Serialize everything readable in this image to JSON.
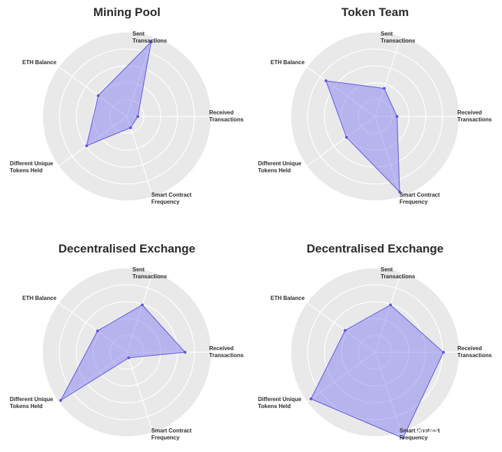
{
  "axes": [
    "Sent Transactions",
    "Received Transactions",
    "Smart Contract Frequency",
    "Different Unique Tokens Held",
    "ETH Balance"
  ],
  "axis_label_lines": [
    [
      "Sent",
      "Transactions"
    ],
    [
      "Received",
      "Transactions"
    ],
    [
      "Smart Contract",
      "Frequency"
    ],
    [
      "Different Unique",
      "Tokens Held"
    ],
    [
      "ETH Balance"
    ]
  ],
  "watermark": "知乎 @陈东泽",
  "colors": {
    "fill": "#7b72f2",
    "stroke": "#5b55e0",
    "background_circle": "#e9e9e9",
    "grid": "#ffffff"
  },
  "chart_data": [
    {
      "type": "radar",
      "title": "Mining Pool",
      "rmax": 1.0,
      "grid_rings": 5,
      "values": [
        0.93,
        0.13,
        0.14,
        0.59,
        0.42
      ]
    },
    {
      "type": "radar",
      "title": "Token Team",
      "rmax": 1.0,
      "grid_rings": 5,
      "values": [
        0.35,
        0.26,
        0.94,
        0.42,
        0.72
      ]
    },
    {
      "type": "radar",
      "title": "Decentralised Exchange",
      "rmax": 1.0,
      "grid_rings": 5,
      "values": [
        0.59,
        0.69,
        0.07,
        0.97,
        0.43
      ]
    },
    {
      "type": "radar",
      "title": "Decentralised Exchange",
      "rmax": 1.0,
      "grid_rings": 5,
      "values": [
        0.59,
        0.81,
        1.07,
        0.94,
        0.44
      ]
    }
  ]
}
